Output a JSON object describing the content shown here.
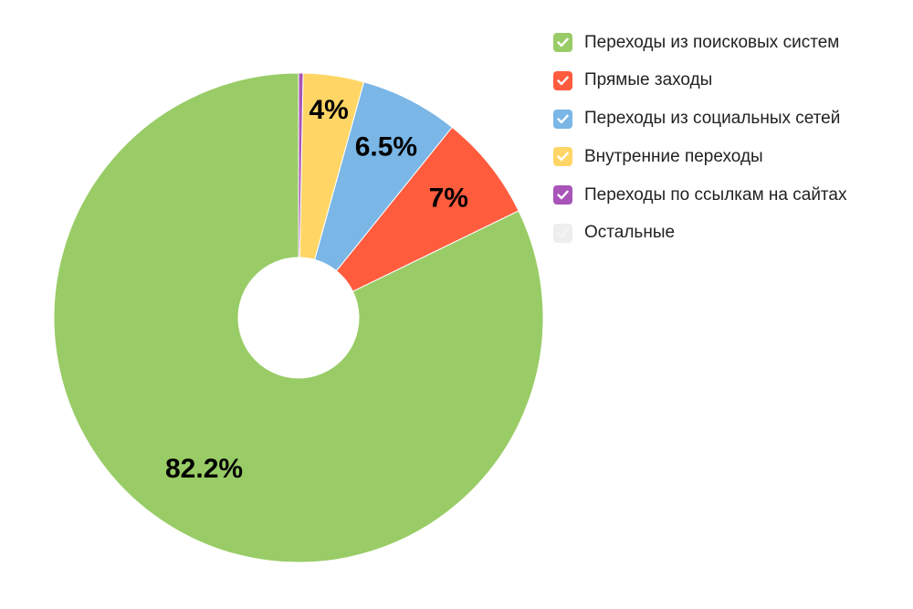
{
  "chart_data": {
    "type": "pie",
    "donut": true,
    "series": [
      {
        "name": "Переходы из поисковых систем",
        "value": 82.2,
        "label": "82.2%",
        "color": "#99cc66",
        "checked": true
      },
      {
        "name": "Прямые заходы",
        "value": 7.0,
        "label": "7%",
        "color": "#ff5c3e",
        "checked": true
      },
      {
        "name": "Переходы из социальных сетей",
        "value": 6.5,
        "label": "6.5%",
        "color": "#7ab6e6",
        "checked": true
      },
      {
        "name": "Внутренние переходы",
        "value": 4.0,
        "label": "4%",
        "color": "#ffd666",
        "checked": true
      },
      {
        "name": "Переходы по ссылкам на сайтах",
        "value": 0.3,
        "label": "",
        "color": "#a854b8",
        "checked": true
      },
      {
        "name": "Остальные",
        "value": 0,
        "label": "",
        "color": "#eeeeee",
        "checked": false
      }
    ],
    "legend_position": "right"
  }
}
